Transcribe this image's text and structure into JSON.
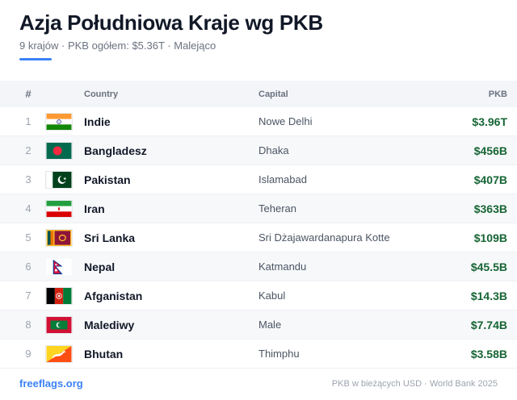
{
  "header": {
    "title": "Azja Południowa Kraje wg PKB",
    "subtitle": "9 krajów · PKB ogółem: $5.36T · Malejąco"
  },
  "table": {
    "columns": {
      "rank": "#",
      "country": "Country",
      "capital": "Capital",
      "gdp": "PKB"
    },
    "rows": [
      {
        "rank": "1",
        "country": "Indie",
        "capital": "Nowe Delhi",
        "gdp": "$3.96T",
        "flag": "india-flag-icon"
      },
      {
        "rank": "2",
        "country": "Bangladesz",
        "capital": "Dhaka",
        "gdp": "$456B",
        "flag": "bangladesh-flag-icon"
      },
      {
        "rank": "3",
        "country": "Pakistan",
        "capital": "Islamabad",
        "gdp": "$407B",
        "flag": "pakistan-flag-icon"
      },
      {
        "rank": "4",
        "country": "Iran",
        "capital": "Teheran",
        "gdp": "$363B",
        "flag": "iran-flag-icon"
      },
      {
        "rank": "5",
        "country": "Sri Lanka",
        "capital": "Sri Dżajawardanapura Kotte",
        "gdp": "$109B",
        "flag": "sri-lanka-flag-icon"
      },
      {
        "rank": "6",
        "country": "Nepal",
        "capital": "Katmandu",
        "gdp": "$45.5B",
        "flag": "nepal-flag-icon"
      },
      {
        "rank": "7",
        "country": "Afganistan",
        "capital": "Kabul",
        "gdp": "$14.3B",
        "flag": "afghanistan-flag-icon"
      },
      {
        "rank": "8",
        "country": "Malediwy",
        "capital": "Male",
        "gdp": "$7.74B",
        "flag": "maldives-flag-icon"
      },
      {
        "rank": "9",
        "country": "Bhutan",
        "capital": "Thimphu",
        "gdp": "$3.58B",
        "flag": "bhutan-flag-icon"
      }
    ]
  },
  "footer": {
    "source_link": "freeflags.org",
    "note": "PKB w bieżących USD · World Bank 2025"
  },
  "colors": {
    "accent": "#3b82f6",
    "gdp_value": "#166534",
    "header_bg": "#f3f5f8"
  }
}
